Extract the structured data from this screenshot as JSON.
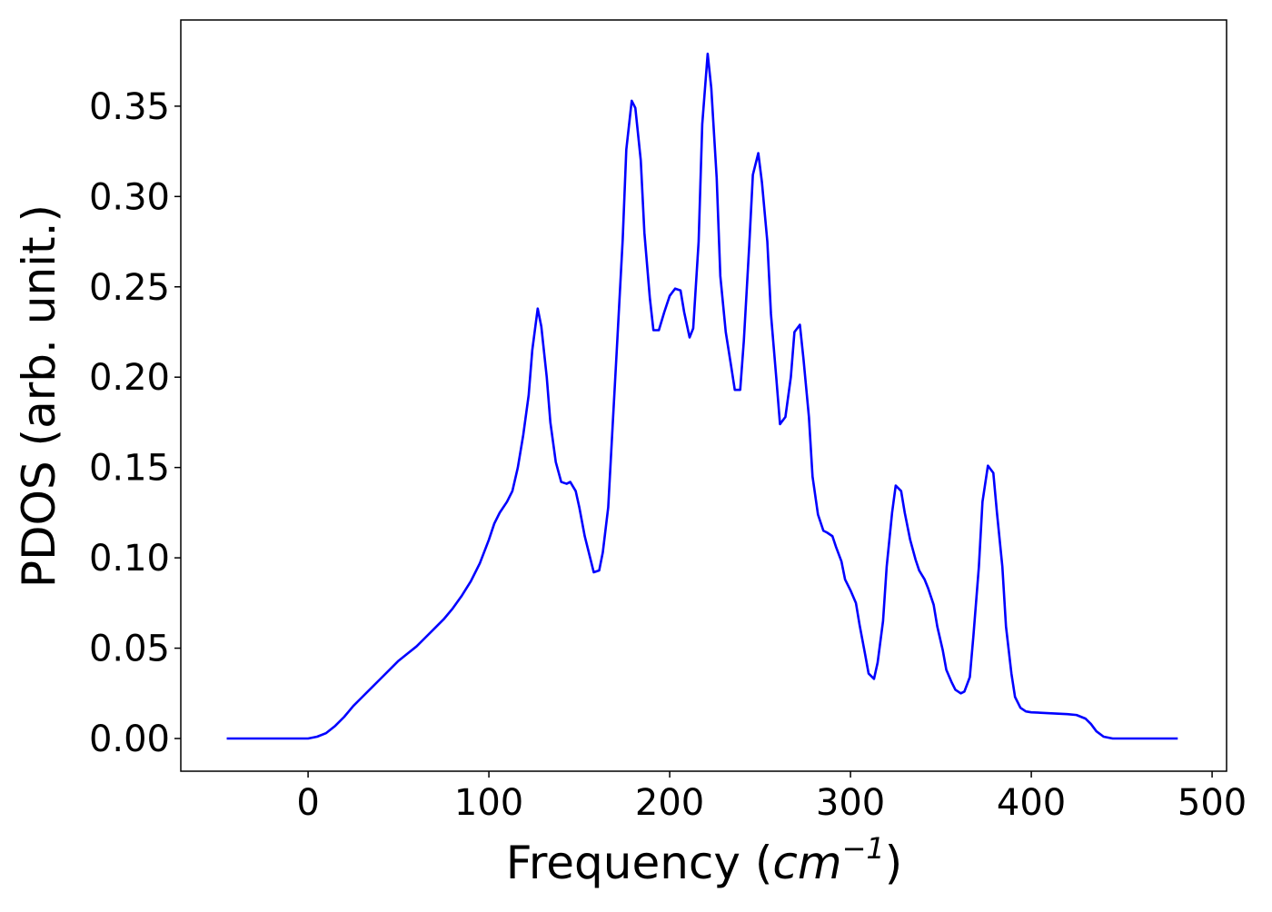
{
  "chart_data": {
    "type": "line",
    "xlabel_parts": [
      "Frequency (",
      "cm",
      "−1",
      ")"
    ],
    "ylabel": "PDOS (arb. unit.)",
    "x": [
      -45,
      0,
      5,
      10,
      15,
      20,
      25,
      30,
      35,
      40,
      45,
      50,
      55,
      60,
      65,
      70,
      75,
      80,
      85,
      90,
      95,
      100,
      103,
      106,
      110,
      113,
      116,
      119,
      122,
      124,
      127,
      129,
      132,
      134,
      137,
      140,
      143,
      145,
      148,
      150,
      153,
      156,
      158,
      161,
      163,
      166,
      168,
      171,
      174,
      176,
      179,
      181,
      184,
      186,
      189,
      191,
      194,
      197,
      200,
      203,
      206,
      208,
      211,
      213,
      216,
      218,
      221,
      223,
      226,
      228,
      231,
      234,
      236,
      239,
      241,
      244,
      246,
      249,
      251,
      254,
      256,
      259,
      261,
      264,
      267,
      269,
      272,
      274,
      277,
      279,
      282,
      285,
      287,
      290,
      292,
      295,
      297,
      300,
      303,
      305,
      308,
      310,
      313,
      315,
      318,
      320,
      323,
      325,
      328,
      330,
      333,
      336,
      338,
      341,
      343,
      346,
      348,
      351,
      353,
      356,
      358,
      361,
      363,
      366,
      368,
      371,
      373,
      376,
      379,
      381,
      384,
      386,
      389,
      391,
      394,
      397,
      400,
      410,
      420,
      425,
      430,
      433,
      436,
      440,
      445,
      481
    ],
    "series": [
      {
        "color": "#0000ff",
        "values": [
          0,
          0,
          0.001,
          0.003,
          0.007,
          0.012,
          0.018,
          0.023,
          0.028,
          0.033,
          0.038,
          0.043,
          0.047,
          0.051,
          0.056,
          0.061,
          0.066,
          0.072,
          0.079,
          0.087,
          0.097,
          0.11,
          0.119,
          0.125,
          0.131,
          0.137,
          0.15,
          0.168,
          0.19,
          0.215,
          0.238,
          0.228,
          0.2,
          0.175,
          0.153,
          0.142,
          0.141,
          0.142,
          0.137,
          0.128,
          0.112,
          0.1,
          0.092,
          0.093,
          0.103,
          0.128,
          0.165,
          0.22,
          0.276,
          0.326,
          0.353,
          0.349,
          0.32,
          0.28,
          0.244,
          0.226,
          0.226,
          0.236,
          0.245,
          0.249,
          0.248,
          0.236,
          0.222,
          0.227,
          0.275,
          0.34,
          0.379,
          0.36,
          0.31,
          0.256,
          0.225,
          0.206,
          0.193,
          0.193,
          0.22,
          0.273,
          0.312,
          0.324,
          0.308,
          0.275,
          0.235,
          0.199,
          0.174,
          0.178,
          0.2,
          0.225,
          0.229,
          0.21,
          0.178,
          0.145,
          0.124,
          0.115,
          0.114,
          0.112,
          0.106,
          0.098,
          0.088,
          0.082,
          0.075,
          0.063,
          0.047,
          0.036,
          0.033,
          0.042,
          0.065,
          0.095,
          0.125,
          0.14,
          0.137,
          0.125,
          0.11,
          0.099,
          0.093,
          0.088,
          0.083,
          0.074,
          0.062,
          0.049,
          0.038,
          0.031,
          0.027,
          0.025,
          0.026,
          0.034,
          0.057,
          0.095,
          0.131,
          0.151,
          0.147,
          0.125,
          0.095,
          0.062,
          0.036,
          0.023,
          0.017,
          0.015,
          0.0145,
          0.014,
          0.0135,
          0.013,
          0.011,
          0.008,
          0.004,
          0.001,
          0,
          0
        ]
      }
    ],
    "xlim": [
      -70.4,
      508
    ],
    "ylim": [
      -0.0181,
      0.3977
    ],
    "xticks": [
      0,
      100,
      200,
      300,
      400,
      500
    ],
    "yticks": [
      {
        "value": 0,
        "label": "0.00"
      },
      {
        "value": 0.05,
        "label": "0.05"
      },
      {
        "value": 0.1,
        "label": "0.10"
      },
      {
        "value": 0.15,
        "label": "0.15"
      },
      {
        "value": 0.2,
        "label": "0.20"
      },
      {
        "value": 0.25,
        "label": "0.25"
      },
      {
        "value": 0.3,
        "label": "0.30"
      },
      {
        "value": 0.35,
        "label": "0.35"
      }
    ],
    "grid": false
  }
}
